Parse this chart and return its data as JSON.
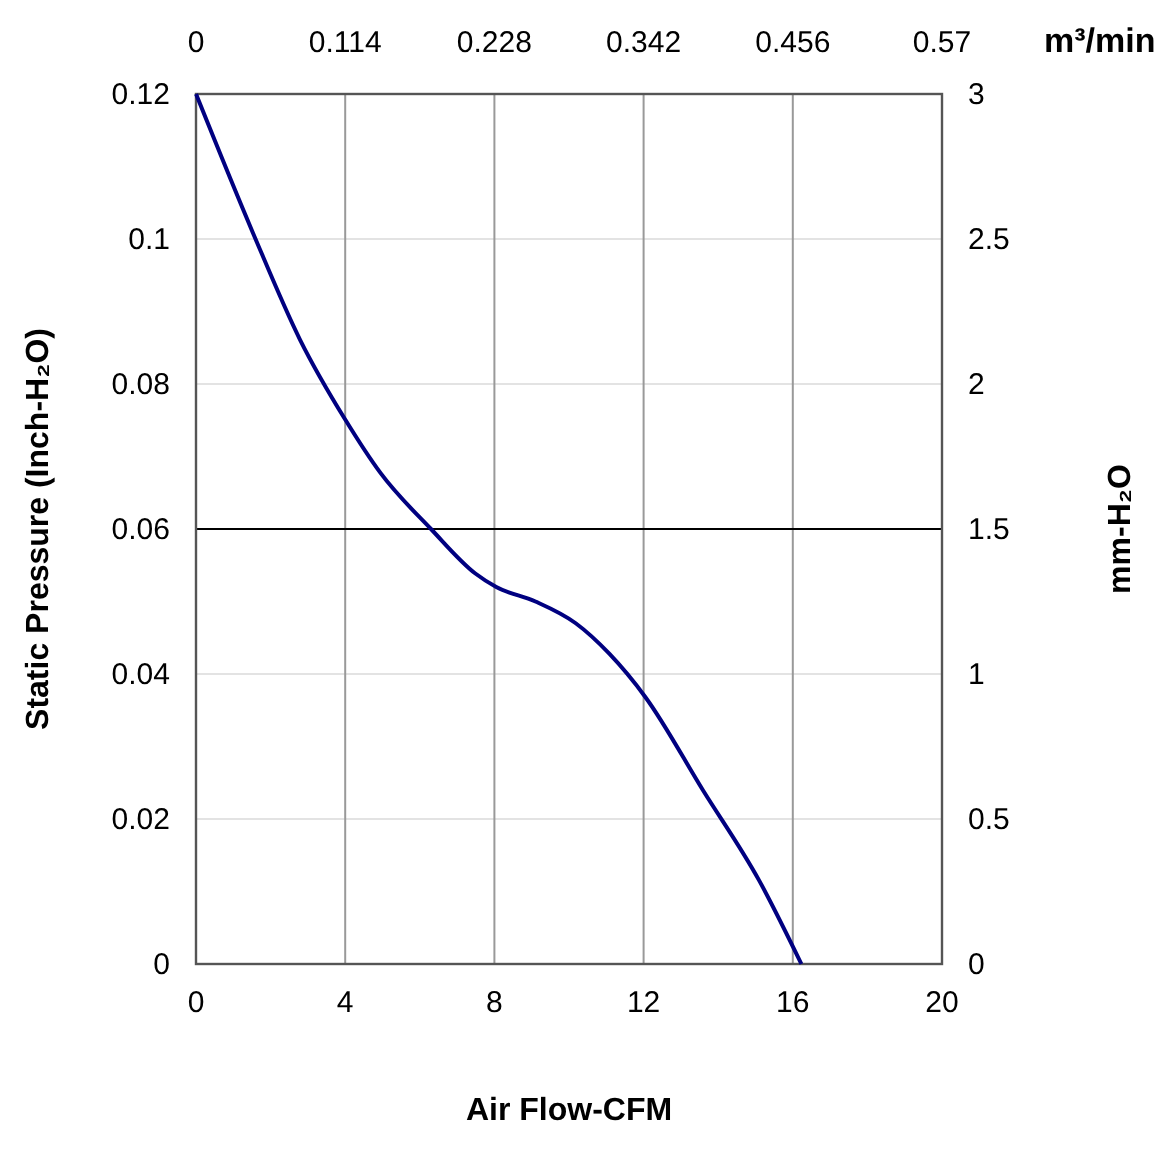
{
  "chart_data": {
    "type": "line",
    "xlabel": "Air Flow-CFM",
    "ylabel": "Static Pressure (Inch-H₂O)",
    "y2label": "mm-H₂O",
    "x2label": "m³/min",
    "series": [
      {
        "color": "#000080",
        "x": [
          0,
          1.53,
          2.79,
          4,
          4.95,
          6.3,
          7.48,
          8.05,
          9.1,
          10.18,
          11.08,
          12.05,
          13.6,
          15.1,
          16.23
        ],
        "values": [
          0.12,
          0.1008,
          0.0861,
          0.0751,
          0.0677,
          0.06,
          0.0539,
          0.052,
          0.05,
          0.047,
          0.0428,
          0.0368,
          0.0239,
          0.0115,
          0
        ]
      }
    ],
    "xlim": [
      0,
      20
    ],
    "xticks": [
      0,
      4,
      8,
      12,
      16,
      20
    ],
    "ylim": [
      0,
      0.12
    ],
    "yticks": [
      0,
      0.02,
      0.04,
      0.06,
      0.08,
      0.1,
      0.12
    ],
    "y2lim": [
      0,
      3
    ],
    "y2ticks": [
      0,
      0.5,
      1,
      1.5,
      2,
      2.5,
      3
    ],
    "x2lim": [
      0,
      0.57
    ],
    "x2ticks": [
      0,
      0.114,
      0.228,
      0.342,
      0.456,
      0.57
    ],
    "ref_lines": [
      {
        "axis": "y",
        "value": 0.06,
        "color": "#000000"
      }
    ],
    "grid": true,
    "marker": "none",
    "line_style": "solid"
  }
}
